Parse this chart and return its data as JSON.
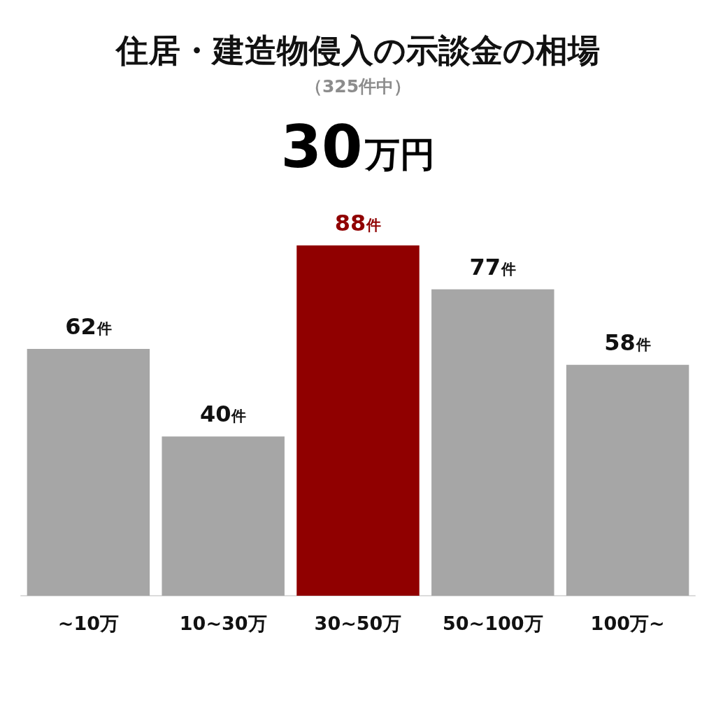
{
  "chart_data": {
    "type": "bar",
    "title": "住居・建造物侵入の示談金の相場",
    "subtitle": "（325件中）",
    "annotations": [
      "30万円"
    ],
    "categories": [
      "~10万",
      "10~30万",
      "30~50万",
      "50~100万",
      "100万~"
    ],
    "values": [
      62,
      40,
      88,
      77,
      58
    ],
    "colors": [
      "#a6a6a6",
      "#a6a6a6",
      "#900000",
      "#a6a6a6",
      "#a6a6a6"
    ],
    "value_labels": [
      "62件",
      "40件",
      "88件",
      "77件",
      "58件"
    ]
  }
}
